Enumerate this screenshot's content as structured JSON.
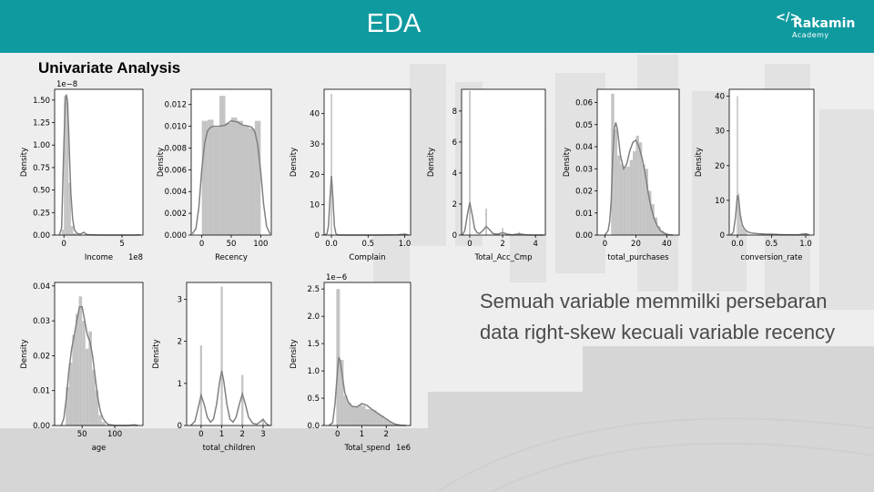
{
  "header": {
    "title": "EDA",
    "logo": {
      "name": "Rakamin",
      "sub": "Academy",
      "mark": "</>"
    }
  },
  "section_title": "Univariate Analysis",
  "note": "Semuah variable memmilki persebaran data right-skew kecuali variable recency",
  "colors": {
    "header": "#0f9aa0",
    "bar": "#c4c4c4",
    "kde": "#808080"
  },
  "chart_data": [
    {
      "type": "area",
      "xlabel": "Income",
      "ylabel": "Density",
      "offset_label": "1e−8",
      "x_exponent": "1e8",
      "xlim": [
        -0.8,
        6.8
      ],
      "ylim": [
        0,
        1.62
      ],
      "xticks": [
        0,
        5
      ],
      "xtick_labels": [
        "0",
        "5"
      ],
      "yticks": [
        0,
        0.25,
        0.5,
        0.75,
        1.0,
        1.25,
        1.5
      ],
      "ytick_labels": [
        "0.00",
        "0.25",
        "0.50",
        "0.75",
        "1.00",
        "1.25",
        "1.50"
      ],
      "bars": {
        "edges": [
          -0.2,
          0,
          0.2,
          0.4,
          0.6,
          0.8,
          1.0,
          1.2
        ],
        "heights": [
          0.06,
          1.55,
          1.48,
          0.58,
          0.1,
          0.02,
          0.01
        ]
      },
      "kde": {
        "x": [
          -0.4,
          -0.2,
          -0.05,
          0.1,
          0.2,
          0.3,
          0.4,
          0.5,
          0.6,
          0.75,
          0.9,
          1.1,
          1.4,
          1.7,
          2.0,
          3,
          4,
          5,
          6,
          6.6
        ],
        "y": [
          0,
          0.08,
          0.8,
          1.45,
          1.56,
          1.5,
          1.2,
          0.8,
          0.45,
          0.18,
          0.06,
          0.02,
          0.01,
          0.03,
          0.005,
          0,
          0,
          0,
          0,
          0.002
        ]
      }
    },
    {
      "type": "area",
      "xlabel": "Recency",
      "ylabel": "Density",
      "xlim": [
        -18,
        118
      ],
      "ylim": [
        0,
        0.0134
      ],
      "xticks": [
        0,
        50,
        100
      ],
      "xtick_labels": [
        "0",
        "50",
        "100"
      ],
      "yticks": [
        0,
        0.002,
        0.004,
        0.006,
        0.008,
        0.01,
        0.012
      ],
      "ytick_labels": [
        "0.000",
        "0.002",
        "0.004",
        "0.006",
        "0.008",
        "0.010",
        "0.012"
      ],
      "bars": {
        "edges": [
          0,
          10,
          20,
          30,
          40,
          50,
          60,
          70,
          80,
          90,
          100
        ],
        "heights": [
          0.0105,
          0.0106,
          0.0099,
          0.0128,
          0.0103,
          0.0108,
          0.0105,
          0.01,
          0.0098,
          0.0105
        ]
      },
      "kde": {
        "x": [
          -16,
          -10,
          -5,
          0,
          5,
          10,
          15,
          20,
          30,
          40,
          50,
          60,
          70,
          80,
          85,
          90,
          95,
          100,
          105,
          110,
          116
        ],
        "y": [
          0.0001,
          0.0006,
          0.0025,
          0.006,
          0.0085,
          0.0096,
          0.0099,
          0.01,
          0.01,
          0.0101,
          0.0105,
          0.0104,
          0.0101,
          0.01,
          0.0099,
          0.0095,
          0.0083,
          0.0058,
          0.0028,
          0.0008,
          0.0001
        ]
      }
    },
    {
      "type": "area",
      "xlabel": "Complain",
      "ylabel": "Density",
      "xlim": [
        -0.1,
        1.08
      ],
      "ylim": [
        0,
        48
      ],
      "xticks": [
        0,
        0.5,
        1
      ],
      "xtick_labels": [
        "0.0",
        "0.5",
        "1.0"
      ],
      "yticks": [
        0,
        10,
        20,
        30,
        40
      ],
      "ytick_labels": [
        "0",
        "10",
        "20",
        "30",
        "40"
      ],
      "bars": {
        "edges": [
          -0.01,
          0.01,
          0.98,
          1.0
        ],
        "heights": [
          46.5,
          0,
          0.4
        ]
      },
      "kde": {
        "x": [
          -0.09,
          -0.06,
          -0.04,
          -0.02,
          0,
          0.02,
          0.04,
          0.06,
          0.08,
          0.12,
          0.3,
          0.6,
          0.9,
          1.0,
          1.05
        ],
        "y": [
          0,
          0.5,
          3,
          12,
          19.5,
          12,
          3,
          0.5,
          0.05,
          0,
          0,
          0,
          0.05,
          0.3,
          0.05
        ]
      }
    },
    {
      "type": "area",
      "xlabel": "Total_Acc_Cmp",
      "ylabel": "Density",
      "xlim": [
        -0.5,
        4.6
      ],
      "ylim": [
        0,
        9.4
      ],
      "xticks": [
        0,
        2,
        4
      ],
      "xtick_labels": [
        "0",
        "2",
        "4"
      ],
      "yticks": [
        0,
        2,
        4,
        6,
        8
      ],
      "ytick_labels": [
        "0",
        "2",
        "4",
        "6",
        "8"
      ],
      "bars": {
        "edges": [
          -0.05,
          0.05,
          0.95,
          1.05,
          1.95,
          2.05,
          2.95,
          3.05
        ],
        "heights": [
          9.3,
          0,
          1.7,
          0,
          0.45,
          0,
          0.2
        ]
      },
      "kde": {
        "x": [
          -0.45,
          -0.3,
          -0.15,
          0,
          0.15,
          0.3,
          0.45,
          0.6,
          0.8,
          1.0,
          1.2,
          1.4,
          1.7,
          2.0,
          2.3,
          2.6,
          3.0,
          3.4,
          3.8,
          4.2,
          4.5
        ],
        "y": [
          0,
          0.3,
          1.3,
          2.1,
          1.3,
          0.4,
          0.15,
          0.1,
          0.3,
          0.55,
          0.35,
          0.1,
          0.05,
          0.15,
          0.05,
          0.02,
          0.08,
          0.02,
          0,
          0,
          0
        ]
      }
    },
    {
      "type": "area",
      "xlabel": "total_purchases",
      "ylabel": "Density",
      "xlim": [
        -5,
        48
      ],
      "ylim": [
        0,
        0.066
      ],
      "xticks": [
        0,
        20,
        40
      ],
      "xtick_labels": [
        "0",
        "20",
        "40"
      ],
      "yticks": [
        0,
        0.01,
        0.02,
        0.03,
        0.04,
        0.05,
        0.06
      ],
      "ytick_labels": [
        "0.00",
        "0.01",
        "0.02",
        "0.03",
        "0.04",
        "0.05",
        "0.06"
      ],
      "bars": {
        "edges": [
          4,
          6,
          8,
          10,
          12,
          14,
          16,
          18,
          20,
          22,
          24,
          26,
          28,
          30,
          32,
          34,
          36,
          38,
          40
        ],
        "heights": [
          0.064,
          0.048,
          0.036,
          0.032,
          0.031,
          0.031,
          0.034,
          0.038,
          0.045,
          0.042,
          0.032,
          0.03,
          0.02,
          0.014,
          0.008,
          0.004,
          0.002,
          0.001
        ]
      },
      "kde": {
        "x": [
          0,
          2,
          3,
          4,
          5,
          6,
          7,
          8,
          10,
          12,
          14,
          16,
          18,
          20,
          22,
          24,
          26,
          28,
          30,
          32,
          34,
          36,
          38,
          40,
          42,
          44
        ],
        "y": [
          0,
          0.002,
          0.006,
          0.015,
          0.035,
          0.048,
          0.051,
          0.048,
          0.036,
          0.03,
          0.032,
          0.038,
          0.042,
          0.043,
          0.04,
          0.035,
          0.028,
          0.019,
          0.012,
          0.007,
          0.004,
          0.002,
          0.001,
          0.0004,
          0.0001,
          0
        ]
      }
    },
    {
      "type": "area",
      "xlabel": "conversion_rate",
      "ylabel": "Density",
      "xlim": [
        -0.12,
        1.12
      ],
      "ylim": [
        0,
        42
      ],
      "xticks": [
        0,
        0.5,
        1
      ],
      "xtick_labels": [
        "0.0",
        "0.5",
        "1.0"
      ],
      "yticks": [
        0,
        10,
        20,
        30,
        40
      ],
      "ytick_labels": [
        "0",
        "10",
        "20",
        "30",
        "40"
      ],
      "bars": {
        "edges": [
          -0.01,
          0.01,
          0.03,
          0.05,
          0.07,
          0.09,
          0.11,
          0.13,
          0.15
        ],
        "heights": [
          40,
          12,
          6,
          3,
          2,
          1.5,
          1,
          0.5
        ]
      },
      "kde": {
        "x": [
          -0.1,
          -0.06,
          -0.03,
          0,
          0.02,
          0.04,
          0.07,
          0.1,
          0.14,
          0.2,
          0.3,
          0.4,
          0.5,
          0.6,
          0.7,
          0.8,
          0.9,
          1.0,
          1.05
        ],
        "y": [
          0,
          0.8,
          5,
          11.5,
          10,
          6,
          3,
          1.8,
          1.0,
          0.6,
          0.4,
          0.3,
          0.25,
          0.15,
          0.1,
          0.05,
          0.1,
          0.4,
          0.1
        ]
      }
    },
    {
      "type": "area",
      "xlabel": "age",
      "ylabel": "Density",
      "xlim": [
        8,
        143
      ],
      "ylim": [
        0,
        0.041
      ],
      "xticks": [
        50,
        100
      ],
      "xtick_labels": [
        "50",
        "100"
      ],
      "yticks": [
        0,
        0.01,
        0.02,
        0.03,
        0.04
      ],
      "ytick_labels": [
        "0.00",
        "0.01",
        "0.02",
        "0.03",
        "0.04"
      ],
      "bars": {
        "edges": [
          25,
          30,
          35,
          40,
          45,
          50,
          55,
          60,
          65,
          70,
          75,
          80,
          85
        ],
        "heights": [
          0.011,
          0.018,
          0.026,
          0.032,
          0.037,
          0.03,
          0.022,
          0.027,
          0.016,
          0.01,
          0.003,
          0.001
        ]
      },
      "kde": {
        "x": [
          18,
          22,
          26,
          30,
          34,
          38,
          42,
          46,
          50,
          54,
          58,
          62,
          66,
          70,
          74,
          78,
          82,
          86,
          90,
          100,
          110,
          120,
          130,
          135
        ],
        "y": [
          0,
          0.002,
          0.008,
          0.016,
          0.022,
          0.026,
          0.03,
          0.034,
          0.034,
          0.03,
          0.026,
          0.024,
          0.02,
          0.014,
          0.008,
          0.004,
          0.002,
          0.001,
          0.0003,
          0,
          0,
          0,
          0.0002,
          0
        ]
      }
    },
    {
      "type": "area",
      "xlabel": "total_children",
      "ylabel": "Density",
      "xlim": [
        -0.7,
        3.4
      ],
      "ylim": [
        0,
        3.4
      ],
      "xticks": [
        0,
        1,
        2,
        3
      ],
      "xtick_labels": [
        "0",
        "1",
        "2",
        "3"
      ],
      "yticks": [
        0,
        1,
        2,
        3
      ],
      "ytick_labels": [
        "0",
        "1",
        "2",
        "3"
      ],
      "bars": {
        "edges": [
          -0.05,
          0.05,
          0.95,
          1.05,
          1.95,
          2.05,
          2.95,
          3.05
        ],
        "heights": [
          1.9,
          0,
          3.3,
          0,
          1.2,
          0,
          0.15
        ]
      },
      "kde": {
        "x": [
          -0.5,
          -0.3,
          -0.15,
          0,
          0.15,
          0.3,
          0.45,
          0.6,
          0.75,
          0.9,
          1.0,
          1.1,
          1.25,
          1.4,
          1.55,
          1.7,
          1.85,
          2.0,
          2.15,
          2.3,
          2.5,
          2.7,
          2.85,
          3.0,
          3.15,
          3.3
        ],
        "y": [
          0,
          0.1,
          0.4,
          0.72,
          0.5,
          0.2,
          0.08,
          0.15,
          0.5,
          1.05,
          1.3,
          1.05,
          0.5,
          0.15,
          0.08,
          0.2,
          0.5,
          0.75,
          0.5,
          0.2,
          0.05,
          0.03,
          0.08,
          0.15,
          0.05,
          0
        ]
      }
    },
    {
      "type": "area",
      "xlabel": "Total_spend",
      "ylabel": "Density",
      "offset_label": "1e−6",
      "x_exponent": "1e6",
      "xlim": [
        -0.55,
        3.0
      ],
      "ylim": [
        0,
        2.62
      ],
      "xticks": [
        0,
        1,
        2
      ],
      "xtick_labels": [
        "0",
        "1",
        "2"
      ],
      "yticks": [
        0,
        0.5,
        1.0,
        1.5,
        2.0,
        2.5
      ],
      "ytick_labels": [
        "0.0",
        "0.5",
        "1.0",
        "1.5",
        "2.0",
        "2.5"
      ],
      "bars": {
        "edges": [
          -0.05,
          0.1,
          0.25,
          0.4,
          0.55,
          0.7,
          0.85,
          1.0,
          1.15,
          1.3,
          1.45,
          1.6,
          1.75,
          1.9,
          2.05,
          2.2,
          2.35,
          2.5
        ],
        "heights": [
          2.5,
          1.2,
          0.55,
          0.42,
          0.35,
          0.35,
          0.38,
          0.36,
          0.3,
          0.3,
          0.28,
          0.22,
          0.18,
          0.12,
          0.08,
          0.04,
          0.02
        ]
      },
      "kde": {
        "x": [
          -0.35,
          -0.2,
          -0.1,
          0,
          0.05,
          0.1,
          0.2,
          0.3,
          0.45,
          0.6,
          0.8,
          1.0,
          1.2,
          1.4,
          1.6,
          1.8,
          2.0,
          2.2,
          2.4,
          2.6,
          2.8
        ],
        "y": [
          0,
          0.05,
          0.4,
          1.0,
          1.25,
          1.2,
          0.9,
          0.6,
          0.42,
          0.35,
          0.34,
          0.4,
          0.37,
          0.3,
          0.24,
          0.18,
          0.12,
          0.06,
          0.02,
          0.005,
          0
        ]
      }
    }
  ]
}
